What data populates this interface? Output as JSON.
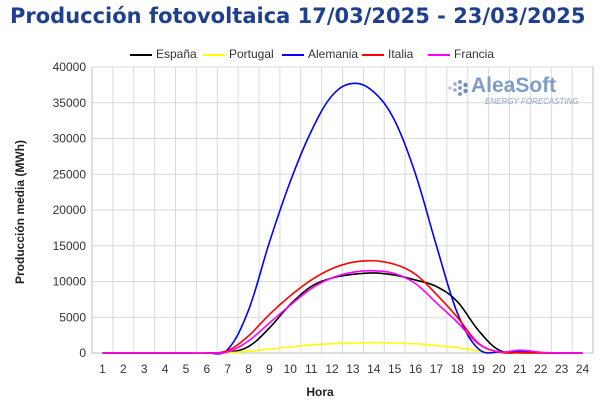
{
  "title": "Producción fotovoltaica 17/03/2025 - 23/03/2025",
  "logo": {
    "name": "AleaSoft",
    "tagline": "ENERGY FORECASTING"
  },
  "chart_data": {
    "type": "line",
    "title": "Producción fotovoltaica 17/03/2025 - 23/03/2025",
    "xlabel": "Hora",
    "ylabel": "Producción media (MWh)",
    "categories": [
      1,
      2,
      3,
      4,
      5,
      6,
      7,
      8,
      9,
      10,
      11,
      12,
      13,
      14,
      15,
      16,
      17,
      18,
      19,
      20,
      21,
      22,
      23,
      24
    ],
    "ylim": [
      0,
      40000
    ],
    "yticks": [
      0,
      5000,
      10000,
      15000,
      20000,
      25000,
      30000,
      35000,
      40000
    ],
    "grid": true,
    "legend_position": "top",
    "series": [
      {
        "name": "España",
        "color": "#000000",
        "values": [
          0,
          0,
          0,
          0,
          0,
          0,
          100,
          900,
          3500,
          6800,
          9300,
          10500,
          11000,
          11200,
          10900,
          10200,
          9300,
          7200,
          3200,
          400,
          50,
          0,
          0,
          0
        ]
      },
      {
        "name": "Portugal",
        "color": "#ffff00",
        "values": [
          0,
          0,
          0,
          0,
          0,
          0,
          30,
          250,
          550,
          850,
          1150,
          1300,
          1400,
          1450,
          1400,
          1280,
          1050,
          750,
          300,
          50,
          0,
          0,
          0,
          0
        ]
      },
      {
        "name": "Alemania",
        "color": "#0000ff",
        "values": [
          0,
          0,
          0,
          0,
          0,
          0,
          500,
          6000,
          15500,
          24000,
          31000,
          36000,
          37700,
          36500,
          32500,
          25000,
          15000,
          5600,
          600,
          100,
          250,
          50,
          0,
          0
        ]
      },
      {
        "name": "Italia",
        "color": "#ff0000",
        "values": [
          0,
          0,
          0,
          0,
          0,
          0,
          350,
          2400,
          5400,
          8000,
          10200,
          11800,
          12700,
          12900,
          12400,
          11000,
          8200,
          5000,
          1400,
          120,
          30,
          0,
          0,
          0
        ]
      },
      {
        "name": "Francia",
        "color": "#ff00ff",
        "values": [
          0,
          0,
          0,
          0,
          0,
          0,
          150,
          1700,
          4200,
          6700,
          9000,
          10500,
          11300,
          11500,
          11100,
          9700,
          7000,
          4300,
          1300,
          150,
          400,
          100,
          0,
          0
        ]
      }
    ]
  }
}
